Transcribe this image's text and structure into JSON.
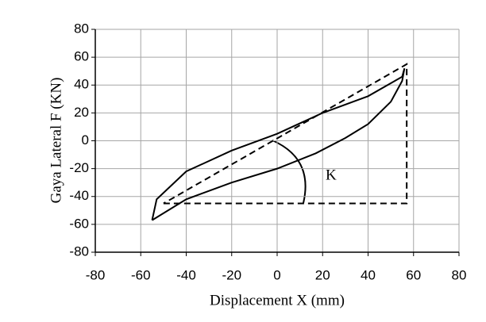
{
  "chart_data": {
    "type": "line",
    "x_label": "Displacement X (mm)",
    "y_label": "Gaya Lateral F (KN)",
    "xlim": [
      -80,
      80
    ],
    "xticks": [
      -80,
      -60,
      -40,
      -20,
      0,
      20,
      40,
      60,
      80
    ],
    "ylim": [
      -80,
      80
    ],
    "yticks": [
      -80,
      -60,
      -40,
      -20,
      0,
      20,
      40,
      60,
      80
    ],
    "grid": true,
    "series": [
      {
        "color": "#000000",
        "dashed": false,
        "x": [
          -55,
          -53,
          -40,
          -20,
          0,
          20,
          40,
          55,
          56,
          55,
          50,
          40,
          30,
          17,
          0,
          -20,
          -40,
          -55
        ],
        "values": [
          -57,
          -42,
          -22,
          -7,
          5,
          20,
          32,
          46,
          52,
          43,
          28,
          12,
          2,
          -9,
          -20,
          -30,
          -42,
          -57
        ]
      },
      {
        "color": "#000000",
        "dashed": true,
        "x": [
          -50,
          57,
          57,
          -50
        ],
        "values": [
          -45,
          -45,
          55,
          -45
        ]
      }
    ],
    "annotation": "K"
  }
}
